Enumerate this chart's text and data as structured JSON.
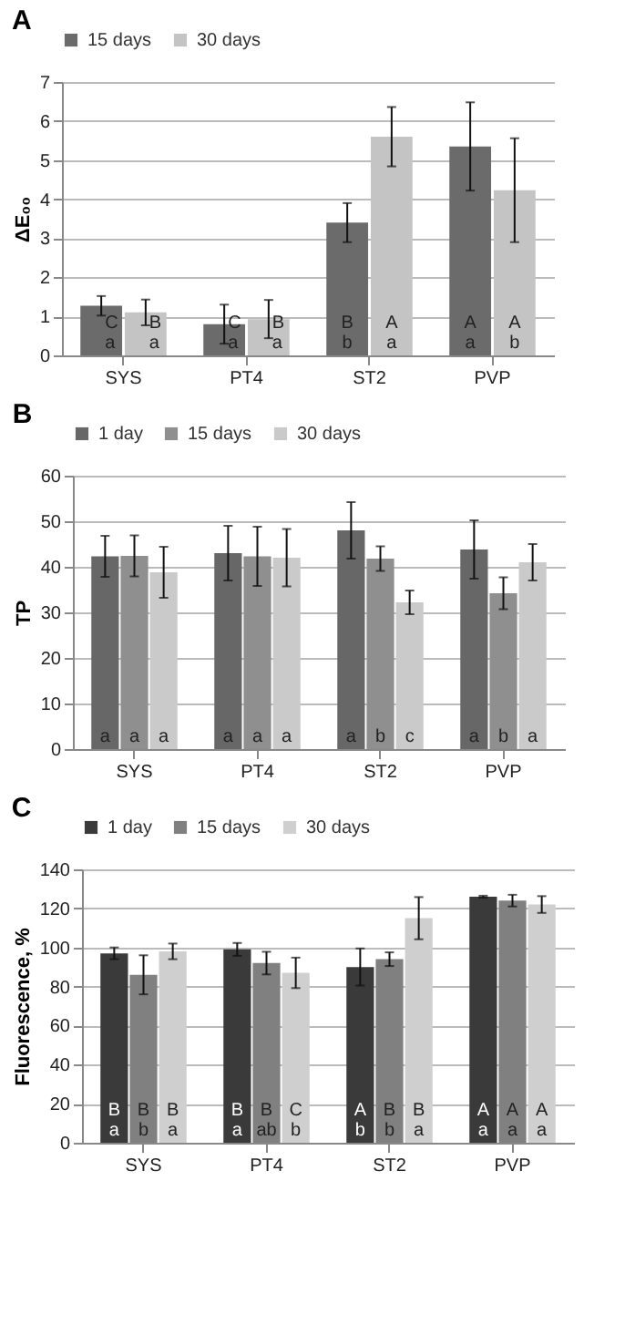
{
  "chart_data": [
    {
      "type": "bar",
      "title": "A",
      "ylabel": "ΔE₀₀",
      "categories": [
        "SYS",
        "PT4",
        "ST2",
        "PVP"
      ],
      "ylim": [
        0,
        7
      ],
      "yticks": [
        0,
        1,
        2,
        3,
        4,
        5,
        6,
        7
      ],
      "grid": "y",
      "legend": "top",
      "series": [
        {
          "name": "15 days",
          "color": "#6b6b6b",
          "values": [
            1.27,
            0.8,
            3.4,
            5.35
          ],
          "errors": [
            0.25,
            0.5,
            0.5,
            1.13
          ],
          "value_labels": [
            "C\na",
            "C\na",
            "B\nb",
            "A\na"
          ]
        },
        {
          "name": "30 days",
          "color": "#c4c4c4",
          "values": [
            1.1,
            0.93,
            5.6,
            4.23
          ],
          "errors": [
            0.33,
            0.49,
            0.76,
            1.33
          ],
          "value_labels": [
            "B\na",
            "B\na",
            "A\na",
            "A\nb"
          ]
        }
      ]
    },
    {
      "type": "bar",
      "title": "B",
      "ylabel": "TP",
      "categories": [
        "SYS",
        "PT4",
        "ST2",
        "PVP"
      ],
      "ylim": [
        0,
        60
      ],
      "yticks": [
        0,
        10,
        20,
        30,
        40,
        50,
        60
      ],
      "grid": "y",
      "legend": "top",
      "series": [
        {
          "name": "1 day",
          "color": "#676767",
          "values": [
            42.3,
            43,
            48,
            43.8
          ],
          "errors": [
            4.5,
            6,
            6.2,
            6.4
          ],
          "value_labels": [
            "a",
            "a",
            "a",
            "a"
          ]
        },
        {
          "name": "15 days",
          "color": "#8f8f8f",
          "values": [
            42.4,
            42.3,
            41.8,
            34.2
          ],
          "errors": [
            4.5,
            6.5,
            2.7,
            3.5
          ],
          "value_labels": [
            "a",
            "a",
            "b",
            "b"
          ]
        },
        {
          "name": "30 days",
          "color": "#cacaca",
          "values": [
            38.8,
            42,
            32.2,
            41
          ],
          "errors": [
            5.6,
            6.3,
            2.6,
            4
          ],
          "value_labels": [
            "a",
            "a",
            "c",
            "a"
          ]
        }
      ]
    },
    {
      "type": "bar",
      "title": "C",
      "ylabel": "Fluorescence, %",
      "categories": [
        "SYS",
        "PT4",
        "ST2",
        "PVP"
      ],
      "ylim": [
        0,
        140
      ],
      "yticks": [
        0,
        20,
        40,
        60,
        80,
        100,
        120,
        140
      ],
      "grid": "y",
      "legend": "top",
      "series": [
        {
          "name": "1 day",
          "color": "#3a3a3a",
          "values": [
            97,
            99,
            90,
            126
          ],
          "errors": [
            3,
            3.3,
            9.5,
            0.5
          ],
          "value_labels": [
            "B\na",
            "B\na",
            "A\nb",
            "A\na"
          ]
        },
        {
          "name": "15 days",
          "color": "#808080",
          "values": [
            86,
            92,
            94,
            124
          ],
          "errors": [
            10,
            5.8,
            3.5,
            3
          ],
          "value_labels": [
            "B\nb",
            "B\nab",
            "B\nb",
            "A\na"
          ]
        },
        {
          "name": "30 days",
          "color": "#cfcfcf",
          "values": [
            98,
            87,
            115,
            122
          ],
          "errors": [
            4,
            7.8,
            10.8,
            4.3
          ],
          "value_labels": [
            "B\na",
            "C\nb",
            "B\na",
            "A\na"
          ]
        }
      ]
    }
  ]
}
